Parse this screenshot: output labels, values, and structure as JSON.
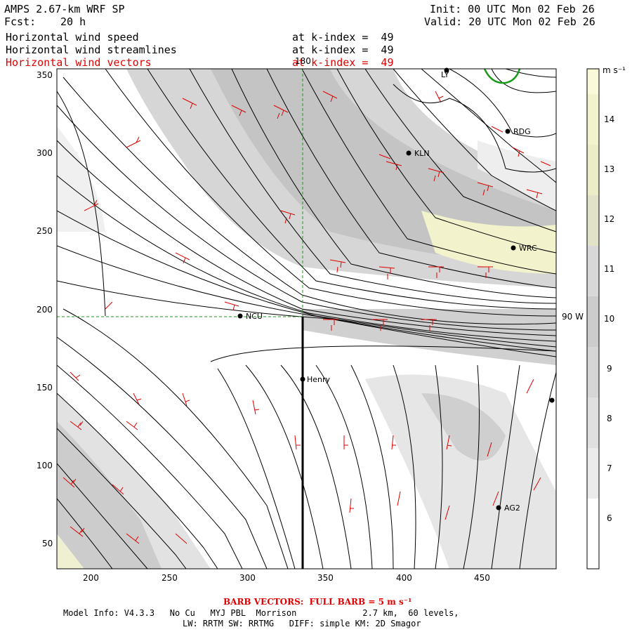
{
  "header": {
    "model_title": "AMPS 2.67-km WRF SP",
    "forecast_label": "Fcst:",
    "forecast_value": "20 h",
    "init": "Init: 00 UTC Mon 02 Feb 26",
    "valid": "Valid: 20 UTC Mon 02 Feb 26",
    "fields": [
      {
        "name": "Horizontal wind speed",
        "level": "at k-index =  49",
        "color": "#000000"
      },
      {
        "name": "Horizontal wind streamlines",
        "level": "at k-index =  49",
        "color": "#000000"
      },
      {
        "name": "Horizontal wind vectors",
        "level": "at k-index =  49",
        "color": "#e00000"
      }
    ]
  },
  "map": {
    "x_ticks": [
      "200",
      "250",
      "300",
      "350",
      "400",
      "450"
    ],
    "y_ticks": [
      "350",
      "300",
      "250",
      "200",
      "150",
      "100",
      "50"
    ],
    "meridian_label": "180",
    "parallel_label": "90 W",
    "stations": [
      {
        "id": "LY",
        "label": "LY"
      },
      {
        "id": "RDG",
        "label": "RDG"
      },
      {
        "id": "KLN",
        "label": "KLN"
      },
      {
        "id": "WRC",
        "label": "WRC"
      },
      {
        "id": "NCU",
        "label": "NCU"
      },
      {
        "id": "Henry",
        "label": "Henry"
      },
      {
        "id": "E",
        "label": ""
      },
      {
        "id": "AG2",
        "label": "AG2"
      }
    ]
  },
  "colorbar": {
    "units": "m s⁻¹",
    "levels": [
      "14",
      "13",
      "12",
      "11",
      "10",
      "9",
      "8",
      "7",
      "6"
    ],
    "colors": {
      "light": "#f4f4f4",
      "mid": "#d8d8d8",
      "dark": "#bdbdbd",
      "yellow": "#f2f2cc",
      "yellow2": "#fafadb"
    }
  },
  "footer": {
    "barb_note": "BARB VECTORS:  FULL BARB = 5 m s⁻¹",
    "model_info": "Model Info: V4.3.3   No Cu   MYJ PBL  Morrison             2.7 km,  60 levels,",
    "physics": "LW: RRTM SW: RRTMG   DIFF: simple KM: 2D Smagor"
  }
}
